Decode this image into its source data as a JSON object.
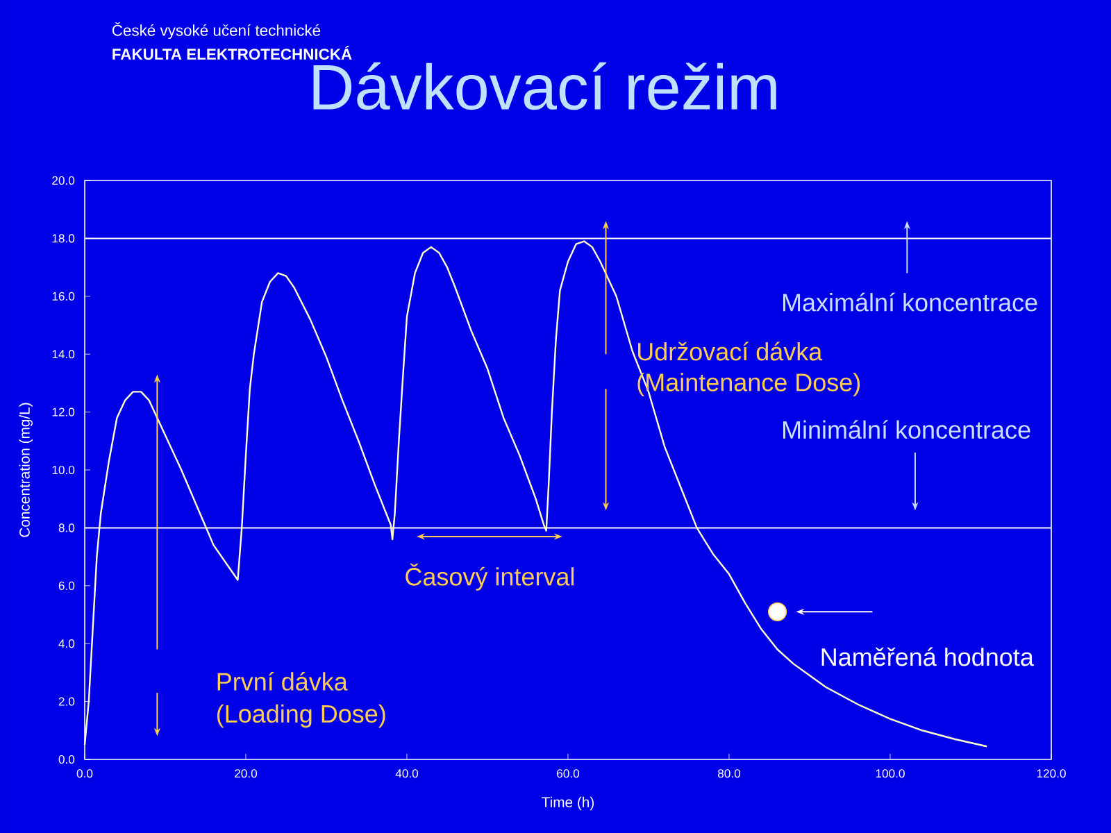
{
  "chart_data": {
    "type": "line",
    "title": "Dávkovací režim",
    "xlabel": "Time (h)",
    "ylabel": "Concentration (mg/L)",
    "xlim": [
      0,
      120
    ],
    "ylim": [
      0,
      20
    ],
    "xticks": [
      {
        "value": 0,
        "label": "0.0"
      },
      {
        "value": 20,
        "label": "20.0"
      },
      {
        "value": 40,
        "label": "40.0"
      },
      {
        "value": 60,
        "label": "60.0"
      },
      {
        "value": 80,
        "label": "80.0"
      },
      {
        "value": 100,
        "label": "100.0"
      },
      {
        "value": 120,
        "label": "120.0"
      }
    ],
    "yticks": [
      {
        "value": 0,
        "label": "0.0"
      },
      {
        "value": 2,
        "label": "2.0"
      },
      {
        "value": 4,
        "label": "4.0"
      },
      {
        "value": 6,
        "label": "6.0"
      },
      {
        "value": 8,
        "label": "8.0"
      },
      {
        "value": 10,
        "label": "10.0"
      },
      {
        "value": 12,
        "label": "12.0"
      },
      {
        "value": 14,
        "label": "14.0"
      },
      {
        "value": 16,
        "label": "16.0"
      },
      {
        "value": 18,
        "label": "18.0"
      },
      {
        "value": 20,
        "label": "20.0"
      }
    ],
    "grid": false,
    "series": [
      {
        "color": "#ffffcc",
        "marker": "none",
        "x": [
          0,
          0.5,
          1,
          1.5,
          2,
          3,
          4,
          5,
          6,
          7,
          8,
          10,
          12,
          14,
          16,
          18,
          19,
          19.5,
          20,
          20.5,
          21,
          22,
          23,
          24,
          25,
          26,
          28,
          30,
          32,
          34,
          36,
          38,
          38.2,
          38.5,
          39,
          39.5,
          40,
          41,
          42,
          43,
          44,
          45,
          46,
          48,
          50,
          52,
          54,
          56,
          57,
          57.3,
          57.6,
          58,
          58.5,
          59,
          60,
          61,
          62,
          63,
          64,
          66,
          68,
          70,
          72,
          74,
          76,
          78,
          80,
          82,
          84,
          86,
          88,
          90,
          92,
          96,
          100,
          104,
          108,
          112
        ],
        "values": [
          0.5,
          2,
          4.5,
          7,
          8.5,
          10.3,
          11.8,
          12.4,
          12.7,
          12.7,
          12.4,
          11.2,
          10,
          8.7,
          7.4,
          6.6,
          6.2,
          8,
          10.5,
          12.8,
          14,
          15.8,
          16.5,
          16.8,
          16.7,
          16.3,
          15.2,
          13.9,
          12.4,
          11,
          9.5,
          8.1,
          7.6,
          8.5,
          11,
          13.2,
          15.3,
          16.8,
          17.5,
          17.7,
          17.5,
          17,
          16.3,
          14.8,
          13.5,
          11.8,
          10.5,
          9,
          8.1,
          7.9,
          9.5,
          12,
          14.5,
          16.2,
          17.2,
          17.8,
          17.9,
          17.7,
          17.2,
          16,
          14.1,
          12.7,
          10.8,
          9.4,
          8,
          7.1,
          6.4,
          5.4,
          4.5,
          3.8,
          3.3,
          2.9,
          2.5,
          1.9,
          1.4,
          1,
          0.7,
          0.45
        ]
      },
      {
        "type": "scatter",
        "color": "#ffffff",
        "marker": "circle",
        "x": [
          86
        ],
        "values": [
          5.1
        ]
      }
    ],
    "ref_lines": [
      {
        "axis": "y",
        "value": 8,
        "color": "#ffffff"
      },
      {
        "axis": "y",
        "value": 18,
        "color": "#ffffff"
      }
    ],
    "annotations": [
      "České vysoké učení technické",
      "FAKULTA ELEKTROTECHNICKÁ",
      "Maximální koncentrace",
      "Minimální koncentrace",
      "Udržovací dávka",
      "(Maintenance Dose)",
      "Časový interval",
      "První dávka",
      "(Loading Dose)",
      {
        "text": "Naměřená hodnota",
        "x": 86,
        "y": 5.1
      }
    ]
  }
}
